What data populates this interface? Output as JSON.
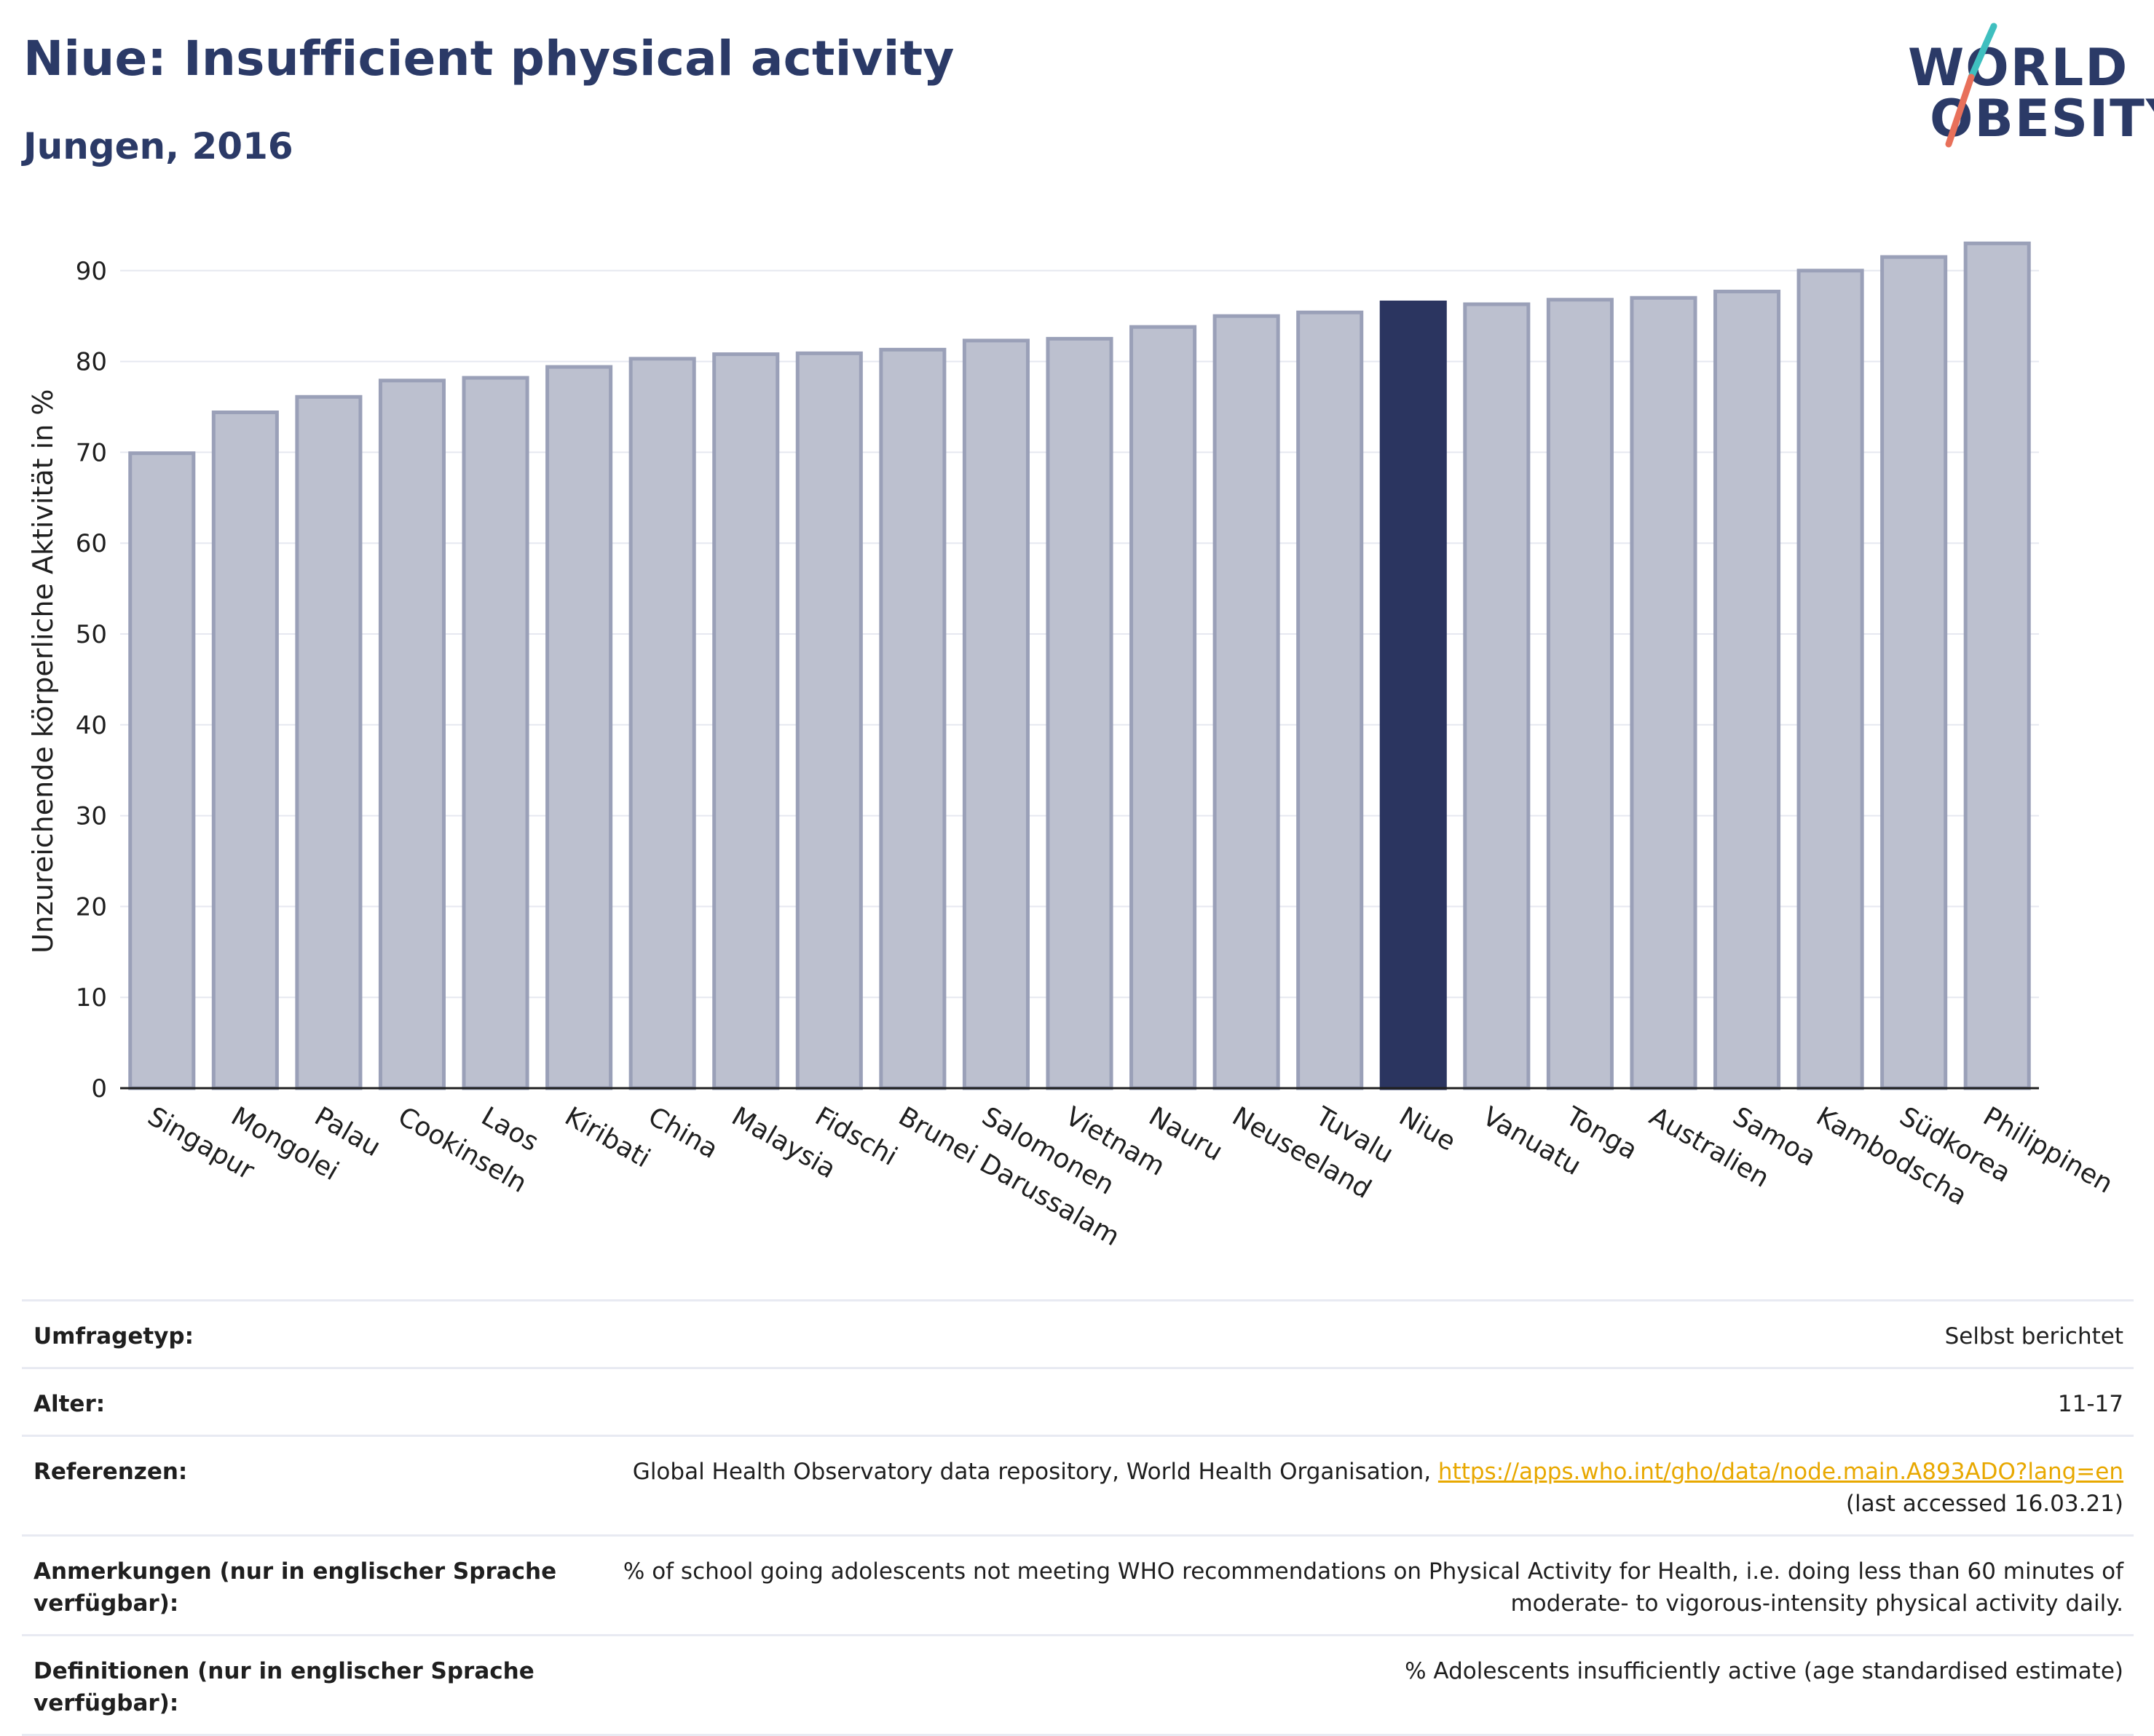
{
  "header": {
    "title": "Niue: Insufficient physical activity",
    "subtitle": "Jungen, 2016",
    "logo_line1": "WORLD",
    "logo_line2": "OBESITY"
  },
  "colors": {
    "title": "#2b3a67",
    "bar": "#bcc0cf",
    "bar_stroke": "#9aa0b8",
    "highlight": "#2b3560",
    "grid": "#e6e8f0",
    "link": "#e8a800",
    "logo_teal": "#3fbfbf",
    "logo_red": "#e8705a"
  },
  "chart_data": {
    "type": "bar",
    "title": "Niue: Insufficient physical activity",
    "subtitle": "Jungen, 2016",
    "xlabel": "",
    "ylabel": "Unzureichende körperliche Aktivität in %",
    "ylim": [
      0,
      95
    ],
    "yticks": [
      0,
      10,
      20,
      30,
      40,
      50,
      60,
      70,
      80,
      90
    ],
    "grid": true,
    "highlight": "Niue",
    "categories": [
      "Singapur",
      "Mongolei",
      "Palau",
      "Cookinseln",
      "Laos",
      "Kiribati",
      "China",
      "Malaysia",
      "Fidschi",
      "Brunei Darussalam",
      "Salomonen",
      "Vietnam",
      "Nauru",
      "Neuseeland",
      "Tuvalu",
      "Niue",
      "Vanuatu",
      "Tonga",
      "Australien",
      "Samoa",
      "Kambodscha",
      "Südkorea",
      "Philippinen"
    ],
    "values": [
      69.9,
      74.4,
      76.1,
      77.9,
      78.2,
      79.4,
      80.3,
      80.8,
      80.9,
      81.3,
      82.3,
      82.5,
      83.8,
      85.0,
      85.4,
      86.5,
      86.3,
      86.8,
      87.0,
      87.7,
      90.0,
      91.5,
      93.0
    ]
  },
  "info": [
    {
      "label": "Umfragetyp:",
      "value": "Selbst berichtet"
    },
    {
      "label": "Alter:",
      "value": "11-17"
    },
    {
      "label": "Referenzen:",
      "value": "Global Health Observatory data repository, World Health Organisation,",
      "link": "https://apps.who.int/gho/data/node.main.A893ADO?lang=en",
      "value2": "(last accessed 16.03.21)"
    },
    {
      "label": "Anmerkungen (nur in englischer Sprache verfügbar):",
      "value": "% of school going adolescents not meeting WHO recommendations on Physical Activity for Health, i.e. doing less than 60 minutes of moderate- to vigorous-intensity physical activity daily."
    },
    {
      "label": "Definitionen (nur in englischer Sprache verfügbar):",
      "value": "% Adolescents insufficiently active (age standardised estimate)"
    }
  ]
}
